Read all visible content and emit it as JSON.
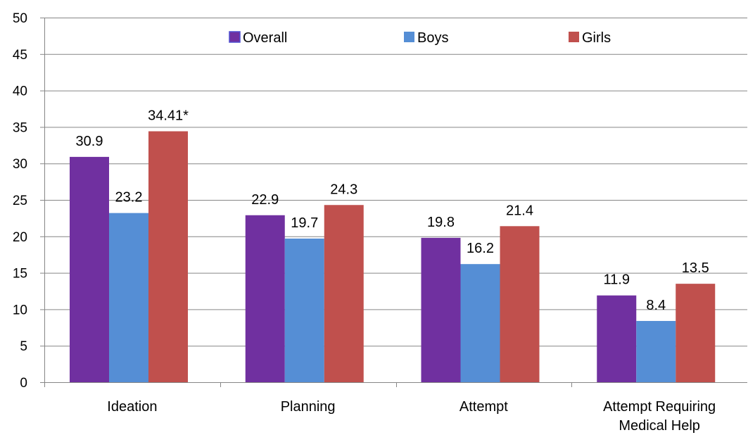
{
  "chart_data": {
    "type": "bar",
    "title": "",
    "xlabel": "",
    "ylabel": "",
    "ylim": [
      0,
      50
    ],
    "y_ticks": [
      0,
      5,
      10,
      15,
      20,
      25,
      30,
      35,
      40,
      45,
      50
    ],
    "grid": true,
    "legend_position": "top-center",
    "categories": [
      [
        "Ideation"
      ],
      [
        "Planning"
      ],
      [
        "Attempt"
      ],
      [
        "Attempt Requiring",
        "Medical Help"
      ]
    ],
    "series": [
      {
        "name": "Overall",
        "color": "#7030A0",
        "values": [
          30.9,
          22.9,
          19.8,
          11.9
        ],
        "labels": [
          "30.9",
          "22.9",
          "19.8",
          "11.9"
        ]
      },
      {
        "name": "Boys",
        "color": "#558ED5",
        "values": [
          23.2,
          19.7,
          16.2,
          8.4
        ],
        "labels": [
          "23.2",
          "19.7",
          "16.2",
          "8.4"
        ]
      },
      {
        "name": "Girls",
        "color": "#C0504D",
        "values": [
          34.41,
          24.3,
          21.4,
          13.5
        ],
        "labels": [
          "34.41*",
          "24.3",
          "21.4",
          "13.5"
        ]
      }
    ]
  }
}
